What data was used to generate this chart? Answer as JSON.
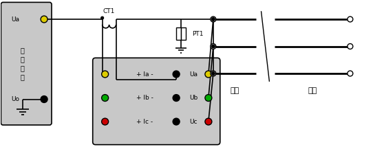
{
  "white_bg": "#ffffff",
  "line_color": "#000000",
  "gray": "#c8c8c8",
  "yellow": "#ddcc00",
  "green": "#00aa00",
  "red": "#cc0000",
  "black": "#000000",
  "CT1_label": "CT1",
  "PT1_label": "PT1",
  "shiduan_label": "始端",
  "moduan_label": "末端",
  "src_label": "单\n相\n电\n源",
  "Ua_label": "Ua",
  "Uo_label": "Uo",
  "labels_i": [
    "+ Ia -",
    "+ Ib -",
    "+ Ic -"
  ],
  "labels_u": [
    "Ua",
    "Ub",
    "Uc"
  ],
  "colors_left": [
    "#ddcc00",
    "#00aa00",
    "#cc0000"
  ],
  "colors_right": [
    "#ddcc00",
    "#00aa00",
    "#cc0000"
  ]
}
